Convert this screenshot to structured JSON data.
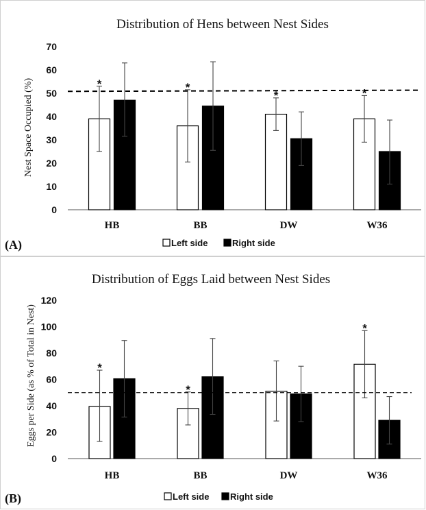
{
  "chart_data": [
    {
      "type": "bar",
      "panel_label": "(A)",
      "title": "Distribution of Hens between Nest Sides",
      "xlabel": "",
      "ylabel": "Nest Space Occupied (%)",
      "ylim": [
        0,
        70
      ],
      "yticks": [
        "0",
        "10",
        "20",
        "30",
        "40",
        "50",
        "60",
        "70"
      ],
      "categories": [
        "HB",
        "BB",
        "DW",
        "W36"
      ],
      "series": [
        {
          "name": "Left side",
          "color": "#ffffff",
          "values": [
            39,
            36,
            41,
            39
          ],
          "err_low": [
            25,
            20.5,
            34,
            29
          ],
          "err_high": [
            53,
            51.5,
            48,
            49
          ]
        },
        {
          "name": "Right side",
          "color": "#000000",
          "values": [
            47,
            44.5,
            30.5,
            25
          ],
          "err_low": [
            31.5,
            25.5,
            19,
            11
          ],
          "err_high": [
            63,
            63.5,
            42,
            38.5
          ]
        }
      ],
      "significance": [
        "*",
        "*",
        "*",
        "*"
      ],
      "reference_line": {
        "y_start": 50.8,
        "y_end": 51.3,
        "style": "dashed"
      },
      "legend": [
        "Left side",
        "Right side"
      ],
      "legend_position": "bottom"
    },
    {
      "type": "bar",
      "panel_label": "(B)",
      "title": "Distribution of Eggs Laid between Nest Sides",
      "xlabel": "",
      "ylabel": "Eggs per Side (as % of Total in Nest)",
      "ylim": [
        0,
        120
      ],
      "yticks": [
        "0",
        "20",
        "40",
        "60",
        "80",
        "100",
        "120"
      ],
      "categories": [
        "HB",
        "BB",
        "DW",
        "W36"
      ],
      "series": [
        {
          "name": "Left side",
          "color": "#ffffff",
          "values": [
            39.5,
            38,
            51,
            71.5
          ],
          "err_low": [
            13,
            25.5,
            28.5,
            46
          ],
          "err_high": [
            67,
            50.5,
            74,
            97
          ]
        },
        {
          "name": "Right side",
          "color": "#000000",
          "values": [
            60.5,
            62,
            49,
            29
          ],
          "err_low": [
            31.5,
            33.5,
            28,
            11
          ],
          "err_high": [
            89.5,
            91,
            70,
            47
          ]
        }
      ],
      "significance": [
        "*",
        "*",
        "",
        "*"
      ],
      "reference_line": {
        "y_start": 50,
        "y_end": 50,
        "style": "dashed"
      },
      "legend": [
        "Left side",
        "Right side"
      ],
      "legend_position": "bottom"
    }
  ]
}
